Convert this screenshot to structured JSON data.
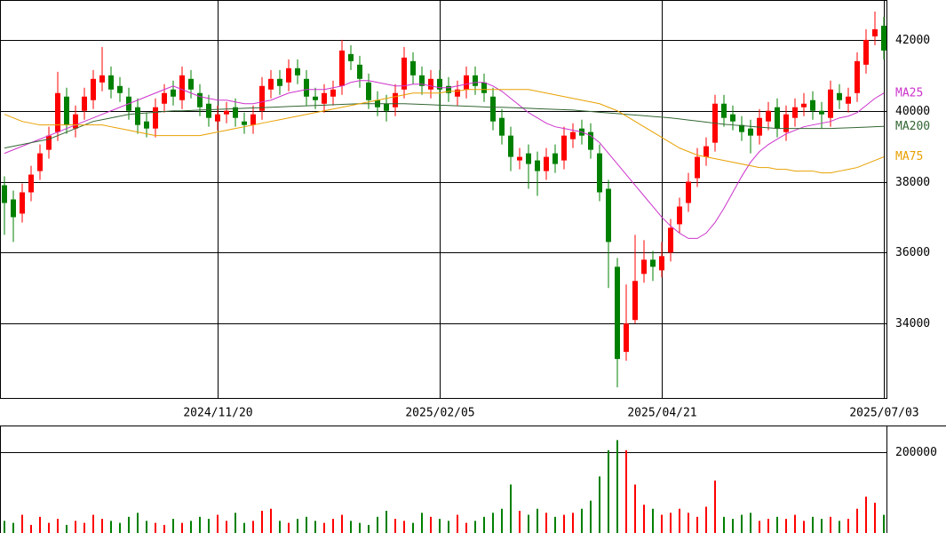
{
  "chart_data": {
    "type": "candlestick",
    "categories": [
      null,
      null,
      null,
      null,
      null,
      null,
      null,
      null,
      null,
      null,
      null,
      null,
      null,
      null,
      null,
      null,
      null,
      null,
      null,
      null,
      null,
      null,
      null,
      null,
      "2024/11/20",
      null,
      null,
      null,
      null,
      null,
      null,
      null,
      null,
      null,
      null,
      null,
      null,
      null,
      null,
      null,
      null,
      null,
      null,
      null,
      null,
      null,
      null,
      null,
      null,
      "2025/02/05",
      null,
      null,
      null,
      null,
      null,
      null,
      null,
      null,
      null,
      null,
      null,
      null,
      null,
      null,
      null,
      null,
      null,
      null,
      null,
      null,
      null,
      null,
      null,
      null,
      "2025/04/21",
      null,
      null,
      null,
      null,
      null,
      null,
      null,
      null,
      null,
      null,
      null,
      null,
      null,
      null,
      null,
      null,
      null,
      null,
      null,
      null,
      null,
      null,
      null,
      null,
      "2025/07/03"
    ],
    "open": [
      37900,
      37500,
      37100,
      37700,
      38300,
      38900,
      39400,
      40400,
      39500,
      40000,
      40300,
      40800,
      41000,
      40700,
      40400,
      40100,
      39700,
      39500,
      40200,
      40600,
      40300,
      40900,
      40500,
      40200,
      39700,
      39900,
      40100,
      39700,
      39600,
      40000,
      40600,
      40900,
      40800,
      41200,
      40900,
      40400,
      40200,
      40400,
      40700,
      41600,
      41300,
      40800,
      40300,
      40200,
      40100,
      40600,
      41400,
      41000,
      40600,
      40900,
      40700,
      40400,
      40600,
      41000,
      40800,
      40400,
      39800,
      39300,
      38600,
      38800,
      38600,
      38300,
      38800,
      38600,
      39200,
      39500,
      39400,
      38800,
      37800,
      35600,
      33200,
      34100,
      35400,
      35800,
      35500,
      36000,
      36800,
      37400,
      38100,
      38700,
      39100,
      40200,
      39900,
      39600,
      39500,
      39300,
      39700,
      40100,
      39400,
      39800,
      40100,
      40300,
      40000,
      39800,
      40500,
      40200,
      40500,
      41300,
      42100,
      42400
    ],
    "high": [
      38150,
      37750,
      37950,
      38450,
      39050,
      39550,
      41100,
      40650,
      40150,
      40650,
      41150,
      41800,
      41250,
      40950,
      40650,
      40350,
      39950,
      40350,
      40750,
      40850,
      41250,
      41150,
      40750,
      40450,
      40150,
      40250,
      40350,
      39950,
      40150,
      40950,
      41150,
      41150,
      41450,
      41450,
      41150,
      40650,
      40750,
      40850,
      42000,
      41850,
      41550,
      41050,
      40550,
      40450,
      40750,
      41800,
      41650,
      41250,
      41150,
      41150,
      40950,
      40850,
      41250,
      41250,
      41050,
      40650,
      40050,
      39550,
      38950,
      39050,
      38850,
      38950,
      39050,
      39550,
      39650,
      39750,
      39650,
      39050,
      38050,
      35850,
      35100,
      36500,
      36350,
      36050,
      36300,
      36950,
      37550,
      38250,
      38950,
      39250,
      40450,
      40450,
      40150,
      39850,
      39750,
      40050,
      40250,
      40350,
      40150,
      40350,
      40500,
      40550,
      40250,
      40850,
      40750,
      40650,
      41650,
      42300,
      42800,
      42650
    ],
    "low": [
      36500,
      36300,
      36850,
      37450,
      38050,
      38650,
      39150,
      39350,
      39250,
      39750,
      40050,
      40550,
      40350,
      40250,
      39750,
      39350,
      39250,
      39250,
      39950,
      40150,
      40050,
      40350,
      39850,
      39550,
      39450,
      39650,
      39550,
      39350,
      39350,
      39750,
      40350,
      40450,
      40550,
      40750,
      40150,
      40050,
      39950,
      40150,
      40450,
      41150,
      40650,
      40050,
      39850,
      39700,
      39850,
      40350,
      40750,
      40450,
      40350,
      40000,
      40250,
      40150,
      40350,
      40450,
      40250,
      39450,
      39050,
      38300,
      38350,
      37800,
      37600,
      38050,
      38250,
      38350,
      38950,
      39050,
      38650,
      37450,
      35000,
      32200,
      32950,
      34000,
      35150,
      35200,
      35300,
      35750,
      36550,
      37150,
      37850,
      38450,
      38850,
      39550,
      39450,
      39150,
      38800,
      39050,
      39450,
      39250,
      39150,
      39550,
      39850,
      39750,
      39500,
      39550,
      40050,
      39950,
      40250,
      41050,
      41850,
      41450
    ],
    "close": [
      37400,
      37000,
      37700,
      38200,
      38800,
      39300,
      40500,
      39600,
      39900,
      40400,
      40900,
      41000,
      40600,
      40500,
      40000,
      39600,
      39500,
      40100,
      40500,
      40400,
      41000,
      40600,
      40100,
      39800,
      39900,
      40000,
      39800,
      39600,
      39900,
      40700,
      40900,
      40700,
      41200,
      41000,
      40400,
      40300,
      40500,
      40600,
      41700,
      41400,
      40900,
      40300,
      40100,
      40000,
      40500,
      41500,
      41000,
      40700,
      40900,
      40600,
      40500,
      40600,
      41000,
      40700,
      40500,
      39700,
      39300,
      38700,
      38700,
      38500,
      38300,
      38700,
      38500,
      39300,
      39400,
      39300,
      38900,
      37700,
      36300,
      33000,
      34000,
      35200,
      35800,
      35600,
      35900,
      36700,
      37300,
      38000,
      38700,
      39000,
      40200,
      39800,
      39700,
      39400,
      39300,
      39800,
      40000,
      39500,
      39900,
      40100,
      40200,
      40000,
      39900,
      40600,
      40300,
      40400,
      41400,
      42000,
      42300,
      41700
    ],
    "volume": [
      30000,
      25000,
      45000,
      20000,
      40000,
      25000,
      35000,
      20000,
      30000,
      25000,
      45000,
      35000,
      30000,
      25000,
      40000,
      50000,
      30000,
      25000,
      20000,
      35000,
      25000,
      30000,
      40000,
      35000,
      45000,
      30000,
      50000,
      25000,
      30000,
      55000,
      60000,
      30000,
      25000,
      35000,
      40000,
      30000,
      25000,
      35000,
      45000,
      30000,
      25000,
      20000,
      40000,
      55000,
      35000,
      30000,
      25000,
      50000,
      40000,
      35000,
      30000,
      45000,
      25000,
      30000,
      40000,
      50000,
      60000,
      120000,
      55000,
      45000,
      60000,
      50000,
      40000,
      45000,
      50000,
      60000,
      80000,
      140000,
      205000,
      230000,
      205000,
      120000,
      70000,
      60000,
      45000,
      50000,
      60000,
      50000,
      40000,
      65000,
      130000,
      40000,
      35000,
      45000,
      50000,
      30000,
      35000,
      40000,
      35000,
      45000,
      30000,
      40000,
      35000,
      40000,
      30000,
      35000,
      60000,
      90000,
      75000,
      45000
    ],
    "up_color": "#ff0000",
    "down_color": "#008000",
    "ylim": [
      31900,
      43125
    ],
    "yticks": [
      34000,
      36000,
      38000,
      40000,
      42000
    ],
    "volume_ylim": [
      0,
      264000
    ],
    "volume_yticks": [
      200000
    ],
    "grid": true,
    "series": [
      {
        "name": "MA25",
        "color": "#cc33cc",
        "values": [
          38800,
          38900,
          39000,
          39100,
          39200,
          39300,
          39400,
          39500,
          39600,
          39700,
          39800,
          39900,
          40000,
          40100,
          40200,
          40300,
          40400,
          40500,
          40600,
          40700,
          40600,
          40500,
          40400,
          40350,
          40300,
          40300,
          40250,
          40200,
          40200,
          40250,
          40300,
          40400,
          40500,
          40550,
          40600,
          40600,
          40600,
          40650,
          40700,
          40800,
          40850,
          40850,
          40800,
          40750,
          40700,
          40700,
          40750,
          40750,
          40700,
          40650,
          40650,
          40700,
          40750,
          40800,
          40800,
          40700,
          40550,
          40350,
          40150,
          39950,
          39800,
          39650,
          39550,
          39500,
          39450,
          39400,
          39300,
          39100,
          38800,
          38500,
          38200,
          37900,
          37600,
          37300,
          37000,
          36750,
          36550,
          36400,
          36400,
          36550,
          36850,
          37250,
          37700,
          38150,
          38550,
          38850,
          39050,
          39200,
          39350,
          39450,
          39550,
          39600,
          39650,
          39700,
          39800,
          39850,
          39950,
          40150,
          40350,
          40500
        ]
      },
      {
        "name": "MA200",
        "color": "#336633",
        "values": [
          38950,
          39000,
          39050,
          39100,
          39150,
          39200,
          39300,
          39400,
          39500,
          39600,
          39700,
          39750,
          39800,
          39850,
          39900,
          39920,
          39940,
          39960,
          39980,
          40000,
          40000,
          40010,
          40020,
          40030,
          40040,
          40050,
          40060,
          40070,
          40080,
          40090,
          40100,
          40110,
          40120,
          40130,
          40140,
          40150,
          40160,
          40170,
          40180,
          40190,
          40200,
          40200,
          40200,
          40200,
          40200,
          40200,
          40190,
          40180,
          40170,
          40160,
          40150,
          40140,
          40130,
          40120,
          40110,
          40100,
          40100,
          40090,
          40080,
          40070,
          40060,
          40050,
          40040,
          40030,
          40020,
          40000,
          39980,
          39960,
          39940,
          39920,
          39900,
          39880,
          39860,
          39840,
          39820,
          39800,
          39770,
          39740,
          39710,
          39680,
          39650,
          39620,
          39600,
          39580,
          39560,
          39540,
          39520,
          39500,
          39500,
          39500,
          39500,
          39500,
          39500,
          39500,
          39510,
          39520,
          39530,
          39540,
          39550,
          39560
        ]
      },
      {
        "name": "MA75",
        "color": "#e8a000",
        "values": [
          39900,
          39800,
          39700,
          39650,
          39600,
          39600,
          39600,
          39600,
          39600,
          39600,
          39600,
          39600,
          39550,
          39500,
          39450,
          39400,
          39350,
          39300,
          39300,
          39300,
          39300,
          39300,
          39300,
          39350,
          39400,
          39450,
          39500,
          39550,
          39600,
          39650,
          39700,
          39750,
          39800,
          39850,
          39900,
          39950,
          40000,
          40050,
          40100,
          40150,
          40200,
          40250,
          40300,
          40350,
          40400,
          40450,
          40500,
          40500,
          40500,
          40500,
          40550,
          40550,
          40600,
          40600,
          40600,
          40600,
          40600,
          40600,
          40600,
          40600,
          40550,
          40500,
          40450,
          40400,
          40350,
          40300,
          40250,
          40200,
          40100,
          40000,
          39850,
          39700,
          39550,
          39400,
          39250,
          39100,
          38950,
          38850,
          38750,
          38700,
          38650,
          38600,
          38550,
          38500,
          38450,
          38400,
          38400,
          38350,
          38350,
          38300,
          38300,
          38300,
          38250,
          38250,
          38300,
          38350,
          38400,
          38500,
          38600,
          38700
        ]
      }
    ]
  }
}
